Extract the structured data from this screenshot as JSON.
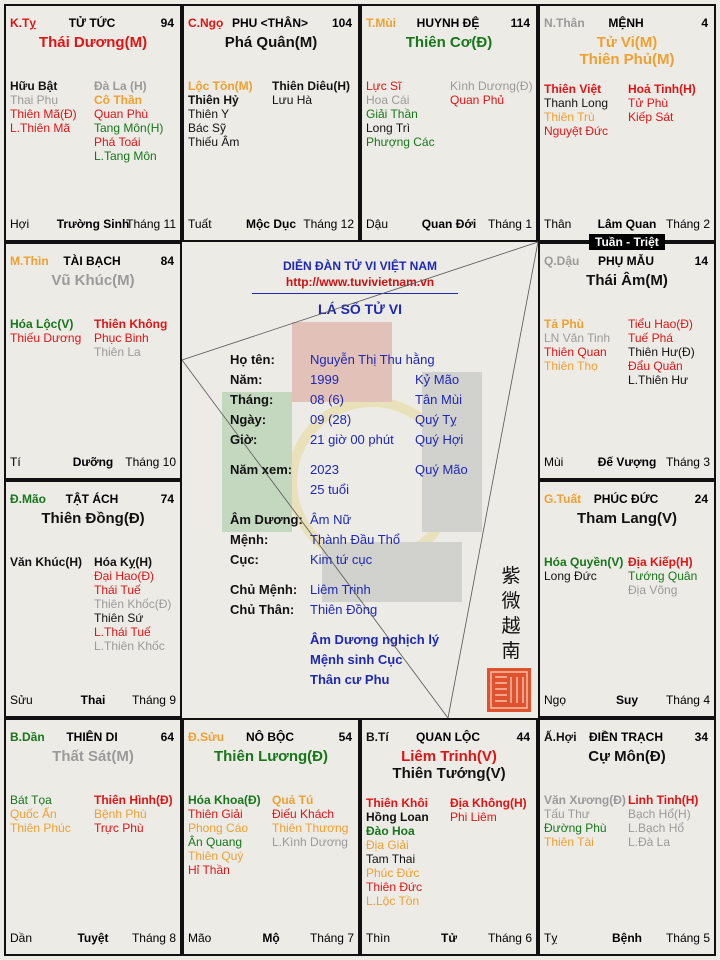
{
  "colors": {
    "red": "#e01414",
    "orange": "#f0a030",
    "green": "#17761a",
    "gray": "#9a9a9a",
    "black": "#111111",
    "blue": "#1e28b4",
    "url_red": "#d01010"
  },
  "palaces": [
    {
      "pos": [
        0,
        0
      ],
      "can_chi": {
        "text": "K.Tỵ",
        "color": "red"
      },
      "name": "TỬ TỨC",
      "num": "94",
      "main": [
        {
          "text": "Thái Dương(M)",
          "color": "red"
        }
      ],
      "left": [
        {
          "t": "Hữu Bật",
          "c": "black",
          "b": 1
        },
        {
          "t": "Thai Phụ",
          "c": "gray"
        },
        {
          "t": "Thiên Mã(Đ)",
          "c": "red"
        },
        {
          "t": "L.Thiên Mã",
          "c": "red"
        }
      ],
      "right": [
        {
          "t": "Đà La (H)",
          "c": "gray",
          "b": 1
        },
        {
          "t": "Cô Thần",
          "c": "orange",
          "b": 1
        },
        {
          "t": "Quan Phù",
          "c": "red"
        },
        {
          "t": "Tang Môn(H)",
          "c": "green"
        },
        {
          "t": "Phá Toái",
          "c": "red"
        },
        {
          "t": "L.Tang Môn",
          "c": "green"
        }
      ],
      "footer": {
        "branch": "Hợi",
        "phase": "Trường Sinh",
        "month": "Tháng 11"
      }
    },
    {
      "pos": [
        0,
        1
      ],
      "can_chi": {
        "text": "C.Ngọ",
        "color": "red"
      },
      "name": "PHU <THÂN>",
      "num": "104",
      "main": [
        {
          "text": "Phá Quân(M)",
          "color": "black"
        }
      ],
      "left": [
        {
          "t": "Lộc Tồn(M)",
          "c": "orange",
          "b": 1
        },
        {
          "t": "Thiên Hỷ",
          "c": "black",
          "b": 1
        },
        {
          "t": "Thiên Y",
          "c": "black"
        },
        {
          "t": "Bác Sỹ",
          "c": "black"
        },
        {
          "t": "Thiếu Âm",
          "c": "black"
        }
      ],
      "right": [
        {
          "t": "Thiên Diêu(H)",
          "c": "black",
          "b": 1
        },
        {
          "t": "Lưu Hà",
          "c": "black"
        }
      ],
      "footer": {
        "branch": "Tuất",
        "phase": "Mộc Dục",
        "month": "Tháng 12"
      }
    },
    {
      "pos": [
        0,
        2
      ],
      "can_chi": {
        "text": "T.Mùi",
        "color": "orange"
      },
      "name": "HUYNH ĐỆ",
      "num": "114",
      "main": [
        {
          "text": "Thiên Cơ(Đ)",
          "color": "green"
        }
      ],
      "left": [
        {
          "t": "Lực Sĩ",
          "c": "red"
        },
        {
          "t": "Hoa Cái",
          "c": "gray"
        },
        {
          "t": "Giải Thần",
          "c": "green"
        },
        {
          "t": "Long Trì",
          "c": "black"
        },
        {
          "t": "Phượng Các",
          "c": "green"
        }
      ],
      "right": [
        {
          "t": "Kình Dương(Đ)",
          "c": "gray"
        },
        {
          "t": "Quan Phủ",
          "c": "red"
        }
      ],
      "footer": {
        "branch": "Dậu",
        "phase": "Quan Đới",
        "month": "Tháng 1"
      }
    },
    {
      "pos": [
        0,
        3
      ],
      "can_chi": {
        "text": "N.Thân",
        "color": "gray"
      },
      "name": "MỆNH",
      "num": "4",
      "main": [
        {
          "text": "Tử Vi(M)",
          "color": "orange"
        },
        {
          "text": "Thiên Phủ(M)",
          "color": "orange"
        }
      ],
      "left": [
        {
          "t": "Thiên Việt",
          "c": "red",
          "b": 1
        },
        {
          "t": "Thanh Long",
          "c": "black"
        },
        {
          "t": "Thiên Trù",
          "c": "orange"
        },
        {
          "t": "Nguyệt Đức",
          "c": "red"
        }
      ],
      "right": [
        {
          "t": "Hoả Tinh(H)",
          "c": "red",
          "b": 1
        },
        {
          "t": "Tử Phù",
          "c": "red"
        },
        {
          "t": "Kiếp Sát",
          "c": "red"
        }
      ],
      "footer": {
        "branch": "Thân",
        "phase": "Lâm Quan",
        "month": "Tháng 2"
      }
    },
    {
      "pos": [
        1,
        0
      ],
      "can_chi": {
        "text": "M.Thìn",
        "color": "orange"
      },
      "name": "TÀI BẠCH",
      "num": "84",
      "main": [
        {
          "text": "Vũ Khúc(M)",
          "color": "gray"
        }
      ],
      "left": [
        {
          "t": "Hóa Lộc(V)",
          "c": "green",
          "b": 1
        },
        {
          "t": "Thiếu Dương",
          "c": "red"
        }
      ],
      "right": [
        {
          "t": "Thiên Không",
          "c": "red",
          "b": 1
        },
        {
          "t": "Phục Binh",
          "c": "red"
        },
        {
          "t": "Thiên La",
          "c": "gray"
        }
      ],
      "footer": {
        "branch": "Tí",
        "phase": "Dưỡng",
        "month": "Tháng 10"
      }
    },
    {
      "pos": [
        1,
        3
      ],
      "can_chi": {
        "text": "Q.Dậu",
        "color": "gray"
      },
      "name": "PHỤ MẪU",
      "num": "14",
      "main": [
        {
          "text": "Thái Âm(M)",
          "color": "black"
        }
      ],
      "left": [
        {
          "t": "Tả Phù",
          "c": "orange",
          "b": 1
        },
        {
          "t": "LN Văn Tinh",
          "c": "gray"
        },
        {
          "t": "Thiên Quan",
          "c": "red"
        },
        {
          "t": "Thiên Thọ",
          "c": "orange"
        }
      ],
      "right": [
        {
          "t": "Tiểu Hao(Đ)",
          "c": "red"
        },
        {
          "t": "Tuế Phá",
          "c": "red"
        },
        {
          "t": "Thiên Hư(Đ)",
          "c": "black"
        },
        {
          "t": "Đẩu Quân",
          "c": "red"
        },
        {
          "t": "L.Thiên Hư",
          "c": "black"
        }
      ],
      "footer": {
        "branch": "Mùi",
        "phase": "Đế Vượng",
        "month": "Tháng 3"
      }
    },
    {
      "pos": [
        2,
        0
      ],
      "can_chi": {
        "text": "Đ.Mão",
        "color": "green"
      },
      "name": "TẬT ÁCH",
      "num": "74",
      "main": [
        {
          "text": "Thiên Đồng(Đ)",
          "color": "black"
        }
      ],
      "left": [
        {
          "t": "Văn Khúc(H)",
          "c": "black",
          "b": 1
        }
      ],
      "right": [
        {
          "t": "Hóa Kỵ(H)",
          "c": "black",
          "b": 1
        },
        {
          "t": "Đại Hao(Đ)",
          "c": "red"
        },
        {
          "t": "Thái Tuế",
          "c": "red"
        },
        {
          "t": "Thiên Khốc(Đ)",
          "c": "gray"
        },
        {
          "t": "Thiên Sứ",
          "c": "black"
        },
        {
          "t": "L.Thái Tuế",
          "c": "red"
        },
        {
          "t": "L.Thiên Khốc",
          "c": "gray"
        }
      ],
      "footer": {
        "branch": "Sửu",
        "phase": "Thai",
        "month": "Tháng 9"
      }
    },
    {
      "pos": [
        2,
        3
      ],
      "can_chi": {
        "text": "G.Tuất",
        "color": "orange"
      },
      "name": "PHÚC ĐỨC",
      "num": "24",
      "main": [
        {
          "text": "Tham Lang(V)",
          "color": "black"
        }
      ],
      "left": [
        {
          "t": "Hóa Quyền(V)",
          "c": "green",
          "b": 1
        },
        {
          "t": "Long Đức",
          "c": "black"
        }
      ],
      "right": [
        {
          "t": "Địa Kiếp(H)",
          "c": "red",
          "b": 1
        },
        {
          "t": "Tướng Quân",
          "c": "green"
        },
        {
          "t": "Địa Võng",
          "c": "gray"
        }
      ],
      "footer": {
        "branch": "Ngọ",
        "phase": "Suy",
        "month": "Tháng 4"
      }
    },
    {
      "pos": [
        3,
        0
      ],
      "can_chi": {
        "text": "B.Dần",
        "color": "green"
      },
      "name": "THIÊN DI",
      "num": "64",
      "main": [
        {
          "text": "Thất Sát(M)",
          "color": "gray"
        }
      ],
      "left": [
        {
          "t": "Bát Tọa",
          "c": "green"
        },
        {
          "t": "Quốc Ấn",
          "c": "orange"
        },
        {
          "t": "Thiên Phúc",
          "c": "orange"
        }
      ],
      "right": [
        {
          "t": "Thiên Hình(Đ)",
          "c": "red",
          "b": 1
        },
        {
          "t": "Bệnh Phù",
          "c": "orange"
        },
        {
          "t": "Trực Phù",
          "c": "red"
        }
      ],
      "footer": {
        "branch": "Dần",
        "phase": "Tuyệt",
        "month": "Tháng 8"
      }
    },
    {
      "pos": [
        3,
        1
      ],
      "can_chi": {
        "text": "Đ.Sửu",
        "color": "orange"
      },
      "name": "NÔ BỘC",
      "num": "54",
      "main": [
        {
          "text": "Thiên Lương(Đ)",
          "color": "green"
        }
      ],
      "left": [
        {
          "t": "Hóa Khoa(Đ)",
          "c": "green",
          "b": 1
        },
        {
          "t": "Thiên Giải",
          "c": "red"
        },
        {
          "t": "Phong Cáo",
          "c": "orange"
        },
        {
          "t": "Ân Quang",
          "c": "green"
        },
        {
          "t": "Thiên Quý",
          "c": "orange"
        },
        {
          "t": "Hỉ Thần",
          "c": "red"
        }
      ],
      "right": [
        {
          "t": "Quả Tú",
          "c": "orange",
          "b": 1
        },
        {
          "t": "Điếu Khách",
          "c": "red"
        },
        {
          "t": "Thiên Thương",
          "c": "orange"
        },
        {
          "t": "L.Kình Dương",
          "c": "gray"
        }
      ],
      "footer": {
        "branch": "Mão",
        "phase": "Mộ",
        "month": "Tháng 7"
      }
    },
    {
      "pos": [
        3,
        2
      ],
      "can_chi": {
        "text": "B.Tí",
        "color": "black"
      },
      "name": "QUAN LỘC",
      "num": "44",
      "main": [
        {
          "text": "Liêm Trinh(V)",
          "color": "red"
        },
        {
          "text": "Thiên Tướng(V)",
          "color": "black"
        }
      ],
      "left": [
        {
          "t": "Thiên Khôi",
          "c": "red",
          "b": 1
        },
        {
          "t": "Hồng Loan",
          "c": "black",
          "b": 1
        },
        {
          "t": "Đào Hoa",
          "c": "green",
          "b": 1
        },
        {
          "t": "Địa Giải",
          "c": "orange"
        },
        {
          "t": "Tam Thai",
          "c": "black"
        },
        {
          "t": "Phúc Đức",
          "c": "orange"
        },
        {
          "t": "Thiên Đức",
          "c": "red"
        },
        {
          "t": "L.Lộc Tồn",
          "c": "orange"
        }
      ],
      "right": [
        {
          "t": "Địa Không(H)",
          "c": "red",
          "b": 1
        },
        {
          "t": "Phi Liêm",
          "c": "red"
        }
      ],
      "footer": {
        "branch": "Thìn",
        "phase": "Tử",
        "month": "Tháng 6"
      }
    },
    {
      "pos": [
        3,
        3
      ],
      "can_chi": {
        "text": "Ấ.Hợi",
        "color": "black"
      },
      "name": "ĐIỀN TRẠCH",
      "num": "34",
      "main": [
        {
          "text": "Cự Môn(Đ)",
          "color": "black"
        }
      ],
      "left": [
        {
          "t": "Văn Xương(Đ)",
          "c": "gray",
          "b": 1
        },
        {
          "t": "Tấu Thư",
          "c": "gray"
        },
        {
          "t": "Đường Phù",
          "c": "green"
        },
        {
          "t": "Thiên Tài",
          "c": "orange"
        }
      ],
      "right": [
        {
          "t": "Linh Tinh(H)",
          "c": "red",
          "b": 1
        },
        {
          "t": "Bạch Hổ(H)",
          "c": "gray"
        },
        {
          "t": "L.Bạch Hổ",
          "c": "gray"
        },
        {
          "t": "L.Đà La",
          "c": "gray"
        }
      ],
      "footer": {
        "branch": "Tỵ",
        "phase": "Bệnh",
        "month": "Tháng 5"
      }
    }
  ],
  "tuan_triet": "Tuần - Triệt",
  "center": {
    "forum": "DIỄN ĐÀN TỬ VI VIỆT NAM",
    "url": "http://www.tuvivietnam.vn",
    "title": "LÁ SỐ TỬ VI",
    "rows": [
      {
        "label": "Họ tên:",
        "value": "Nguyễn Thị Thu hằng",
        "extra": ""
      },
      {
        "label": "Năm:",
        "value": "1999",
        "extra": "Kỷ Mão"
      },
      {
        "label": "Tháng:",
        "value": "08 (6)",
        "extra": "Tân Mùi"
      },
      {
        "label": "Ngày:",
        "value": "09 (28)",
        "extra": "Quý Tỵ"
      },
      {
        "label": "Giờ:",
        "value": "21 giờ 00 phút",
        "extra": "Quý Hợi"
      },
      {
        "label": "Năm xem:",
        "value": "2023",
        "extra": "Quý Mão"
      },
      {
        "label": "",
        "value": "25 tuổi",
        "extra": ""
      },
      {
        "label": "Âm Dương:",
        "value": "Âm Nữ",
        "extra": ""
      },
      {
        "label": "Mệnh:",
        "value": "Thành Đầu Thổ",
        "extra": ""
      },
      {
        "label": "Cục:",
        "value": "Kim tứ cục",
        "extra": ""
      },
      {
        "label": "Chủ Mệnh:",
        "value": "Liêm Trinh",
        "extra": ""
      },
      {
        "label": "Chủ Thân:",
        "value": "Thiên Đồng",
        "extra": ""
      }
    ],
    "notes": [
      "Âm Dương nghịch lý",
      "Mệnh sinh Cục",
      "Thân cư Phu"
    ],
    "chinese_chars": [
      "紫",
      "微",
      "越",
      "南"
    ],
    "seal": "seal-stamp"
  }
}
